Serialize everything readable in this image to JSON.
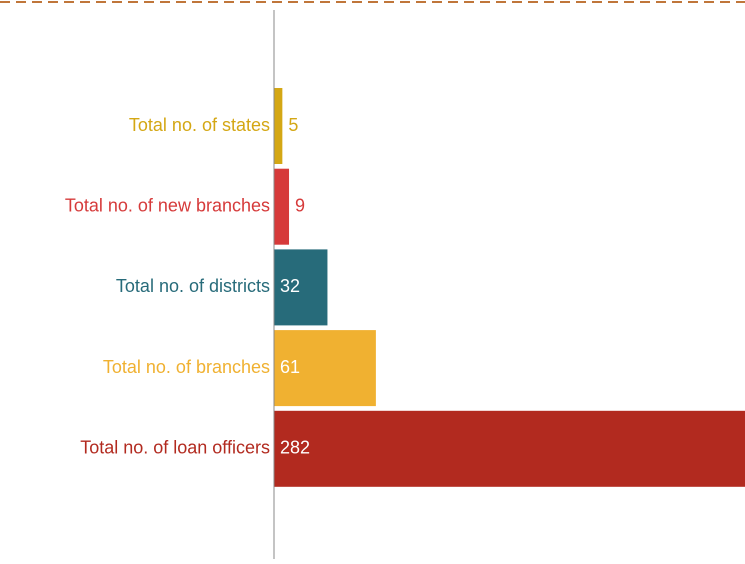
{
  "chart_data": {
    "type": "barh",
    "categories": [
      "Total no. of states",
      "Total no. of new branches",
      "Total no. of districts",
      "Total no. of branches",
      "Total no. of loan officers"
    ],
    "values": [
      5,
      9,
      32,
      61,
      282
    ],
    "colors": [
      "#d4a714",
      "#d63a3a",
      "#276b7a",
      "#f0b131",
      "#b22a1f"
    ],
    "xlim": [
      0,
      282
    ]
  }
}
